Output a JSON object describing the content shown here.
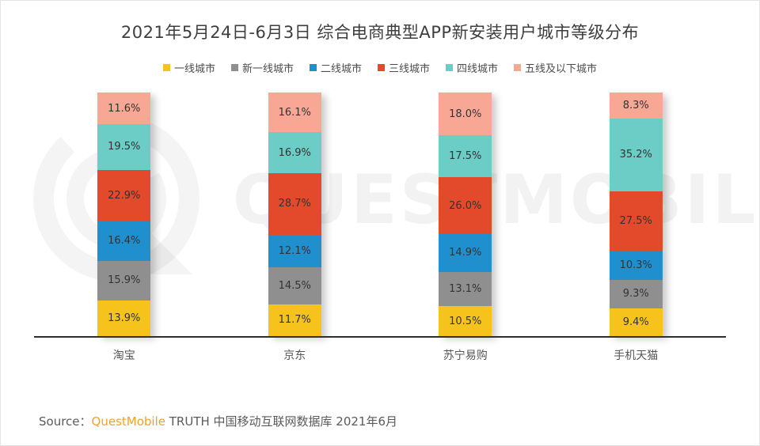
{
  "title": "2021年5月24日-6月3日 综合电商典型APP新安装用户城市等级分布",
  "legend": [
    {
      "label": "一线城市",
      "color": "#F5C31B"
    },
    {
      "label": "新一线城市",
      "color": "#8F8F8F"
    },
    {
      "label": "二线城市",
      "color": "#1F8FCE"
    },
    {
      "label": "三线城市",
      "color": "#E24A2B"
    },
    {
      "label": "四线城市",
      "color": "#6BCDC5"
    },
    {
      "label": "五线及以下城市",
      "color": "#F8A795"
    }
  ],
  "chart_data": {
    "type": "bar",
    "stacked": true,
    "orientation": "vertical",
    "unit": "%",
    "ylim": [
      0,
      100
    ],
    "grid": false,
    "legend_position": "top",
    "categories": [
      "淘宝",
      "京东",
      "苏宁易购",
      "手机天猫"
    ],
    "series": [
      {
        "name": "一线城市",
        "color": "#F5C31B",
        "values": [
          13.9,
          11.7,
          10.5,
          9.4
        ]
      },
      {
        "name": "新一线城市",
        "color": "#8F8F8F",
        "values": [
          15.9,
          14.5,
          13.1,
          9.3
        ]
      },
      {
        "name": "二线城市",
        "color": "#1F8FCE",
        "values": [
          16.4,
          12.1,
          14.9,
          10.3
        ]
      },
      {
        "name": "三线城市",
        "color": "#E24A2B",
        "values": [
          22.9,
          28.7,
          26.0,
          27.5
        ]
      },
      {
        "name": "四线城市",
        "color": "#6BCDC5",
        "values": [
          19.5,
          16.9,
          17.5,
          35.2
        ]
      },
      {
        "name": "五线及以下城市",
        "color": "#F8A795",
        "values": [
          11.6,
          16.1,
          18.0,
          8.3
        ]
      }
    ]
  },
  "watermark": {
    "text": "QUESTMOBILE"
  },
  "source": {
    "prefix": "Source：",
    "brand": "QuestMobile",
    "suffix": " TRUTH 中国移动互联网数据库 2021年6月",
    "brand_color": "#f5a028"
  }
}
